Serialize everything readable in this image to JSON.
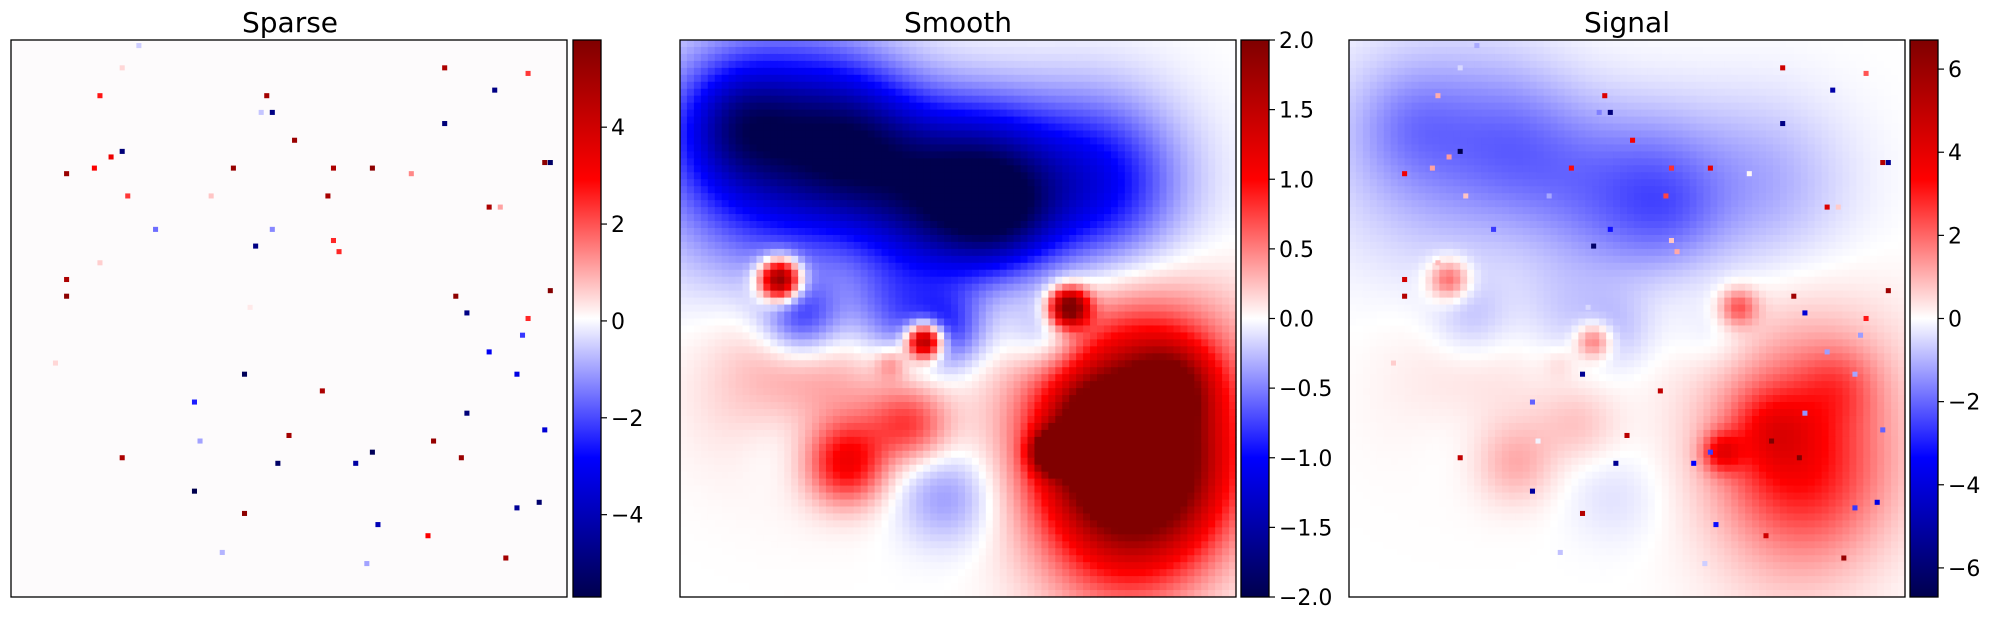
{
  "chart_data": [
    {
      "type": "heatmap",
      "title": "Sparse",
      "colormap": "seismic",
      "clim": [
        -5.7,
        5.8
      ],
      "colorbar_ticks": [
        4,
        2,
        0,
        -2,
        -4
      ],
      "colorbar_tick_labels": [
        "4",
        "2",
        "0",
        "−2",
        "−4"
      ],
      "grid": false,
      "axes_ticks_visible": false,
      "points": [
        [
          0.2,
          0.05,
          0.5
        ],
        [
          0.78,
          0.05,
          4.8
        ],
        [
          0.23,
          0.01,
          -0.5
        ],
        [
          0.93,
          0.06,
          2.3
        ],
        [
          0.46,
          0.1,
          5.0
        ],
        [
          0.47,
          0.13,
          -4.8
        ],
        [
          0.45,
          0.13,
          -0.6
        ],
        [
          0.87,
          0.09,
          -4.8
        ],
        [
          0.78,
          0.15,
          -5.0
        ],
        [
          0.51,
          0.18,
          5.2
        ],
        [
          0.16,
          0.1,
          2.7
        ],
        [
          0.18,
          0.21,
          3.3
        ],
        [
          0.2,
          0.2,
          -5.0
        ],
        [
          0.1,
          0.24,
          5.2
        ],
        [
          0.15,
          0.23,
          3.0
        ],
        [
          0.4,
          0.23,
          5.3
        ],
        [
          0.58,
          0.23,
          4.8
        ],
        [
          0.65,
          0.23,
          5.5
        ],
        [
          0.72,
          0.24,
          1.4
        ],
        [
          0.96,
          0.22,
          5.5
        ],
        [
          0.97,
          0.22,
          -5.3
        ],
        [
          0.21,
          0.28,
          2.3
        ],
        [
          0.36,
          0.28,
          0.7
        ],
        [
          0.57,
          0.28,
          4.9
        ],
        [
          0.86,
          0.3,
          4.8
        ],
        [
          0.88,
          0.3,
          1.1
        ],
        [
          0.26,
          0.34,
          -1.6
        ],
        [
          0.47,
          0.34,
          -1.3
        ],
        [
          0.44,
          0.37,
          -4.8
        ],
        [
          0.58,
          0.36,
          2.5
        ],
        [
          0.59,
          0.38,
          2.5
        ],
        [
          0.16,
          0.4,
          0.6
        ],
        [
          0.1,
          0.43,
          4.8
        ],
        [
          0.1,
          0.46,
          5.5
        ],
        [
          0.43,
          0.48,
          0.3
        ],
        [
          0.8,
          0.46,
          5.5
        ],
        [
          0.82,
          0.49,
          -4.8
        ],
        [
          0.97,
          0.45,
          5.7
        ],
        [
          0.93,
          0.5,
          2.5
        ],
        [
          0.92,
          0.53,
          -2.2
        ],
        [
          0.86,
          0.56,
          -3.0
        ],
        [
          0.08,
          0.58,
          0.5
        ],
        [
          0.42,
          0.6,
          -5.5
        ],
        [
          0.56,
          0.63,
          4.8
        ],
        [
          0.91,
          0.6,
          -3.3
        ],
        [
          0.33,
          0.65,
          -2.5
        ],
        [
          0.82,
          0.67,
          -5.0
        ],
        [
          0.96,
          0.7,
          -3.5
        ],
        [
          0.2,
          0.75,
          4.8
        ],
        [
          0.34,
          0.72,
          -1.0
        ],
        [
          0.5,
          0.71,
          5.0
        ],
        [
          0.76,
          0.72,
          5.3
        ],
        [
          0.81,
          0.75,
          5.2
        ],
        [
          0.65,
          0.74,
          -5.5
        ],
        [
          0.62,
          0.76,
          -4.3
        ],
        [
          0.48,
          0.76,
          -5.3
        ],
        [
          0.33,
          0.81,
          -5.7
        ],
        [
          0.42,
          0.85,
          5.5
        ],
        [
          0.66,
          0.87,
          -4.0
        ],
        [
          0.91,
          0.84,
          -4.5
        ],
        [
          0.95,
          0.83,
          -5.2
        ],
        [
          0.75,
          0.89,
          3.0
        ],
        [
          0.38,
          0.92,
          -0.8
        ],
        [
          0.64,
          0.94,
          -1.0
        ],
        [
          0.89,
          0.93,
          5.0
        ]
      ]
    },
    {
      "type": "heatmap",
      "title": "Smooth",
      "colormap": "seismic",
      "clim": [
        -2.0,
        2.0
      ],
      "colorbar_ticks": [
        2.0,
        1.5,
        1.0,
        0.5,
        0.0,
        -0.5,
        -1.0,
        -1.5,
        -2.0
      ],
      "colorbar_tick_labels": [
        "2.0",
        "1.5",
        "1.0",
        "0.5",
        "0.0",
        "−0.5",
        "−1.0",
        "−1.5",
        "−2.0"
      ],
      "grid": false,
      "axes_ticks_visible": false,
      "blobs": [
        [
          0.17,
          0.2,
          0.14,
          -1.3
        ],
        [
          0.11,
          0.15,
          0.07,
          -0.7
        ],
        [
          0.3,
          0.18,
          0.09,
          -0.9
        ],
        [
          0.42,
          0.26,
          0.1,
          -1.0
        ],
        [
          0.55,
          0.23,
          0.09,
          -1.0
        ],
        [
          0.58,
          0.32,
          0.07,
          -0.9
        ],
        [
          0.74,
          0.26,
          0.11,
          -1.1
        ],
        [
          0.48,
          0.35,
          0.08,
          -0.5
        ],
        [
          0.22,
          0.5,
          0.05,
          -0.8
        ],
        [
          0.38,
          0.49,
          0.06,
          -0.5
        ],
        [
          0.48,
          0.52,
          0.05,
          -0.7
        ],
        [
          0.66,
          0.53,
          0.05,
          -0.5
        ],
        [
          0.2,
          0.71,
          0.07,
          -0.3
        ],
        [
          0.48,
          0.82,
          0.06,
          -0.4
        ],
        [
          0.4,
          0.73,
          0.05,
          -0.3
        ],
        [
          0.22,
          0.63,
          0.11,
          0.5
        ],
        [
          0.3,
          0.76,
          0.05,
          1.0
        ],
        [
          0.82,
          0.65,
          0.13,
          1.5
        ],
        [
          0.78,
          0.75,
          0.09,
          1.2
        ],
        [
          0.85,
          0.8,
          0.1,
          1.2
        ],
        [
          0.79,
          0.9,
          0.11,
          0.6
        ],
        [
          0.76,
          0.7,
          0.05,
          1.3
        ],
        [
          0.88,
          0.62,
          0.05,
          1.0
        ],
        [
          0.41,
          0.7,
          0.05,
          0.9
        ],
        [
          0.18,
          0.43,
          0.025,
          2.3
        ],
        [
          0.44,
          0.54,
          0.022,
          2.2
        ],
        [
          0.7,
          0.48,
          0.024,
          2.2
        ],
        [
          0.67,
          0.74,
          0.024,
          2.4
        ],
        [
          0.38,
          0.58,
          0.02,
          0.4
        ]
      ]
    },
    {
      "type": "heatmap",
      "title": "Signal",
      "colormap": "seismic",
      "clim": [
        -6.7,
        6.7
      ],
      "colorbar_ticks": [
        6,
        4,
        2,
        0,
        -2,
        -4,
        -6
      ],
      "colorbar_tick_labels": [
        "6",
        "4",
        "2",
        "0",
        "−2",
        "−4",
        "−6"
      ],
      "grid": false,
      "axes_ticks_visible": false,
      "note_value": "sum of Sparse and Smooth"
    }
  ]
}
